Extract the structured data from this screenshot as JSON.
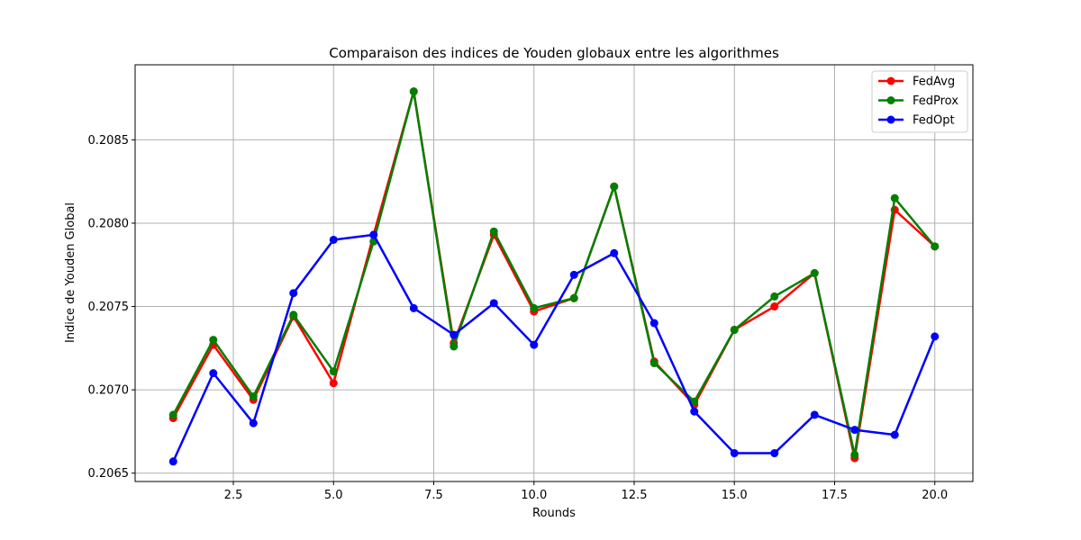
{
  "chart_data": {
    "type": "line",
    "title": "Comparaison des indices de Youden globaux entre les algorithmes",
    "xlabel": "Rounds",
    "ylabel": "Indice de Youden Global",
    "xlim": [
      0.05,
      20.95
    ],
    "ylim": [
      0.20645,
      0.20895
    ],
    "xticks": [
      2.5,
      5.0,
      7.5,
      10.0,
      12.5,
      15.0,
      17.5,
      20.0
    ],
    "xtick_labels": [
      "2.5",
      "5.0",
      "7.5",
      "10.0",
      "12.5",
      "15.0",
      "17.5",
      "20.0"
    ],
    "yticks": [
      0.2065,
      0.207,
      0.2075,
      0.208,
      0.2085
    ],
    "ytick_labels": [
      "0.2065",
      "0.2070",
      "0.2075",
      "0.2080",
      "0.2085"
    ],
    "grid": true,
    "legend_position": "top-right",
    "x": [
      1,
      2,
      3,
      4,
      5,
      6,
      7,
      8,
      9,
      10,
      11,
      12,
      13,
      14,
      15,
      16,
      17,
      18,
      19,
      20
    ],
    "series": [
      {
        "name": "FedAvg",
        "color": "#ff0000",
        "values": [
          0.20683,
          0.20727,
          0.20694,
          0.20744,
          0.20704,
          0.20793,
          0.20879,
          0.20728,
          0.20793,
          0.20747,
          0.20755,
          0.20822,
          0.20717,
          0.20691,
          0.20736,
          0.2075,
          0.2077,
          0.20659,
          0.20808,
          0.20786
        ]
      },
      {
        "name": "FedProx",
        "color": "#008000",
        "values": [
          0.20685,
          0.2073,
          0.20696,
          0.20745,
          0.20711,
          0.20789,
          0.20879,
          0.20726,
          0.20795,
          0.20749,
          0.20755,
          0.20822,
          0.20716,
          0.20693,
          0.20736,
          0.20756,
          0.2077,
          0.20661,
          0.20815,
          0.20786
        ]
      },
      {
        "name": "FedOpt",
        "color": "#0000ff",
        "values": [
          0.20657,
          0.2071,
          0.2068,
          0.20758,
          0.2079,
          0.20793,
          0.20749,
          0.20733,
          0.20752,
          0.20727,
          0.20769,
          0.20782,
          0.2074,
          0.20687,
          0.20662,
          0.20662,
          0.20685,
          0.20676,
          0.20673,
          0.20732
        ]
      }
    ]
  }
}
